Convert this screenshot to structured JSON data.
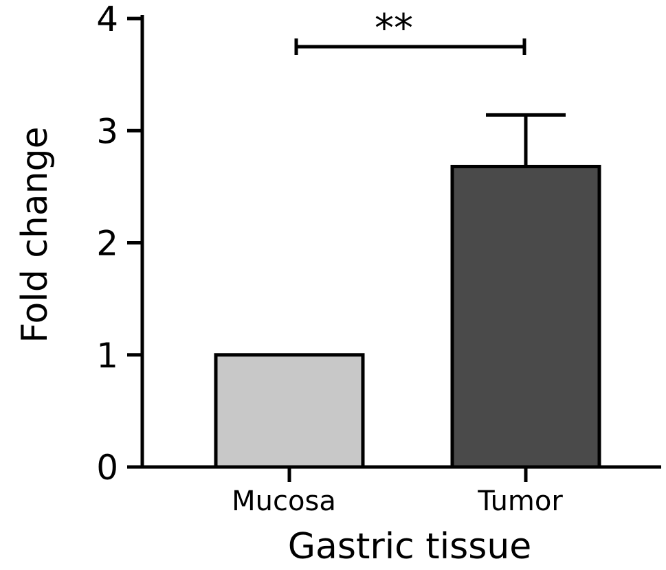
{
  "chart_data": {
    "type": "bar",
    "title": "",
    "xlabel": "Gastric tissue",
    "ylabel": "Fold change",
    "ylim": [
      0,
      4
    ],
    "yticks": [
      "0",
      "1",
      "2",
      "3",
      "4"
    ],
    "categories": [
      "Mucosa",
      "Tumor"
    ],
    "values": [
      1.0,
      2.68
    ],
    "errors": [
      0.0,
      0.46
    ],
    "bar_colors": [
      "#c8c8c8",
      "#4a4a4a"
    ],
    "significance": {
      "between": [
        "Mucosa",
        "Tumor"
      ],
      "label": "**"
    },
    "grid": false,
    "legend": "none"
  }
}
